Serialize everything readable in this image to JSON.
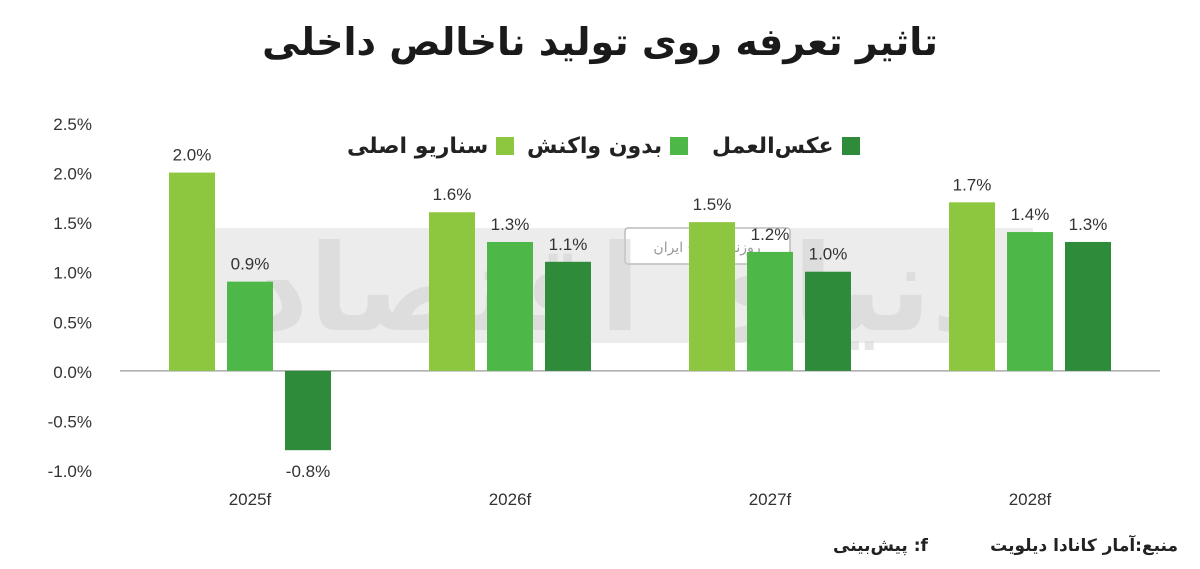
{
  "title": "تاثیر تعرفه روی تولید ناخالص داخلی",
  "footer": {
    "source": "منبع:آمار کانادا دیلویت",
    "note": "f: پیش‌بینی"
  },
  "watermark": {
    "badge_text": "روزنامه صبح ایران",
    "logo_text": "دنیای اقتصاد"
  },
  "colors": {
    "base": "#8dc63f",
    "no_response": "#4db848",
    "retaliation": "#2e8b3a",
    "axis": "#999999",
    "watermark_band": "#e6e6e6"
  },
  "chart_data": {
    "type": "bar",
    "title": "تاثیر تعرفه روی تولید ناخالص داخلی",
    "categories": [
      "2025f",
      "2026f",
      "2027f",
      "2028f"
    ],
    "series": [
      {
        "name": "سناریو اصلی",
        "values": [
          2.0,
          1.6,
          1.5,
          1.7
        ],
        "labels": [
          "2.0%",
          "1.6%",
          "1.5%",
          "1.7%"
        ]
      },
      {
        "name": "بدون واکنش",
        "values": [
          0.9,
          1.3,
          1.2,
          1.4
        ],
        "labels": [
          "0.9%",
          "1.3%",
          "1.2%",
          "1.4%"
        ]
      },
      {
        "name": "عکس‌العمل",
        "values": [
          -0.8,
          1.1,
          1.0,
          1.3
        ],
        "labels": [
          "-0.8%",
          "1.1%",
          "1.0%",
          "1.3%"
        ]
      }
    ],
    "ylim": [
      -1.0,
      2.5
    ],
    "yticks": [
      2.5,
      2.0,
      1.5,
      1.0,
      0.5,
      0.0,
      -0.5,
      -1.0
    ],
    "ytick_labels": [
      "2.5%",
      "2.0%",
      "1.5%",
      "1.0%",
      "0.5%",
      "0.0%",
      "-0.5%",
      "-1.0%"
    ],
    "grid": false,
    "legend": "top"
  }
}
